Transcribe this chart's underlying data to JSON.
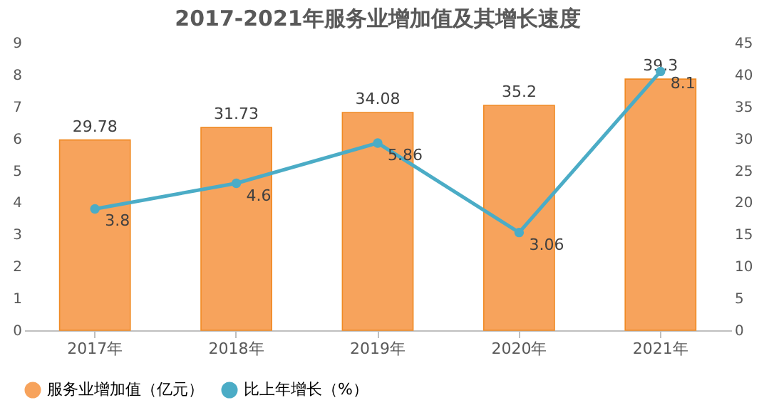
{
  "chart_data": {
    "type": "bar",
    "title": "2017-2021年服务业增加值及其增长速度",
    "categories": [
      "2017年",
      "2018年",
      "2019年",
      "2020年",
      "2021年"
    ],
    "series": [
      {
        "name": "服务业增加值（亿元）",
        "axis": "y2",
        "color": "#f7a35c",
        "values": [
          29.78,
          31.73,
          34.08,
          35.2,
          39.3
        ]
      },
      {
        "name": "比上年增长（%）",
        "type": "line",
        "axis": "y",
        "color": "#4bacc6",
        "values": [
          3.8,
          4.6,
          5.86,
          3.06,
          8.1
        ]
      }
    ],
    "ylim": [
      0,
      9
    ],
    "yticks": [
      0,
      1,
      2,
      3,
      4,
      5,
      6,
      7,
      8,
      9
    ],
    "y2lim": [
      0,
      45
    ],
    "y2ticks": [
      0,
      5,
      10,
      15,
      20,
      25,
      30,
      35,
      40,
      45
    ],
    "data_labels": true,
    "legend": "bottom",
    "marker": "circle",
    "grid": false
  }
}
